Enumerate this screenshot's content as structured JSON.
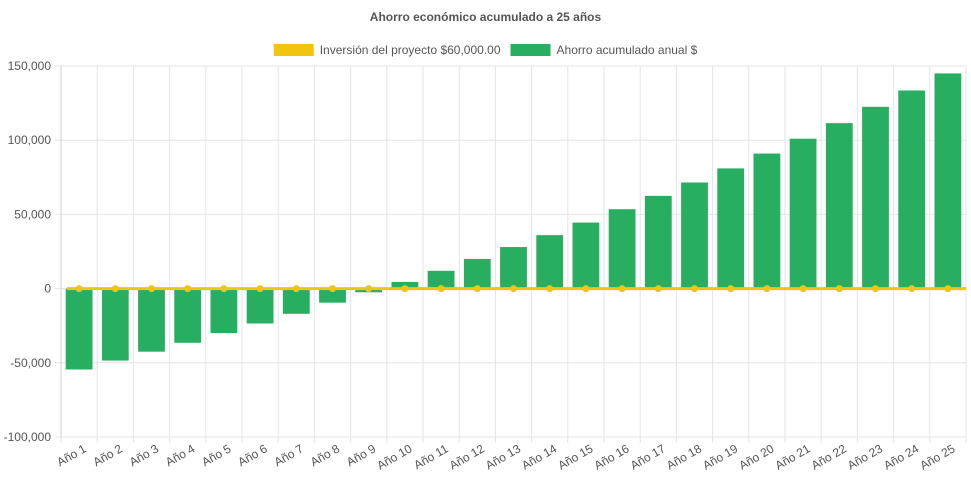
{
  "chart_data": {
    "type": "bar",
    "title": "Ahorro económico acumulado a 25 años",
    "categories": [
      "Año 1",
      "Año 2",
      "Año 3",
      "Año 4",
      "Año 5",
      "Año 6",
      "Año 7",
      "Año 8",
      "Año 9",
      "Año 10",
      "Año 11",
      "Año 12",
      "Año 13",
      "Año 14",
      "Año 15",
      "Año 16",
      "Año 17",
      "Año 18",
      "Año 19",
      "Año 20",
      "Año 21",
      "Año 22",
      "Año 23",
      "Año 24",
      "Año 25"
    ],
    "series": [
      {
        "name": "Inversión del proyecto $60,000.00",
        "type": "line",
        "color": "#f1c40f",
        "values": [
          0,
          0,
          0,
          0,
          0,
          0,
          0,
          0,
          0,
          0,
          0,
          0,
          0,
          0,
          0,
          0,
          0,
          0,
          0,
          0,
          0,
          0,
          0,
          0,
          0
        ]
      },
      {
        "name": "Ahorro acumulado anual $",
        "type": "bar",
        "color": "#27ae60",
        "values": [
          -54500,
          -48500,
          -42500,
          -36500,
          -30000,
          -23500,
          -17000,
          -9500,
          -2500,
          4500,
          12000,
          20000,
          28000,
          36000,
          44500,
          53500,
          62500,
          71500,
          81000,
          91000,
          101000,
          111500,
          122500,
          133500,
          145000
        ]
      }
    ],
    "ylim": [
      -100000,
      150000
    ],
    "yticks": [
      -100000,
      -50000,
      0,
      50000,
      100000,
      150000
    ],
    "ytick_labels": [
      "-100,000",
      "-50,000",
      "0",
      "50,000",
      "100,000",
      "150,000"
    ],
    "grid": true,
    "legend": "top-center"
  }
}
